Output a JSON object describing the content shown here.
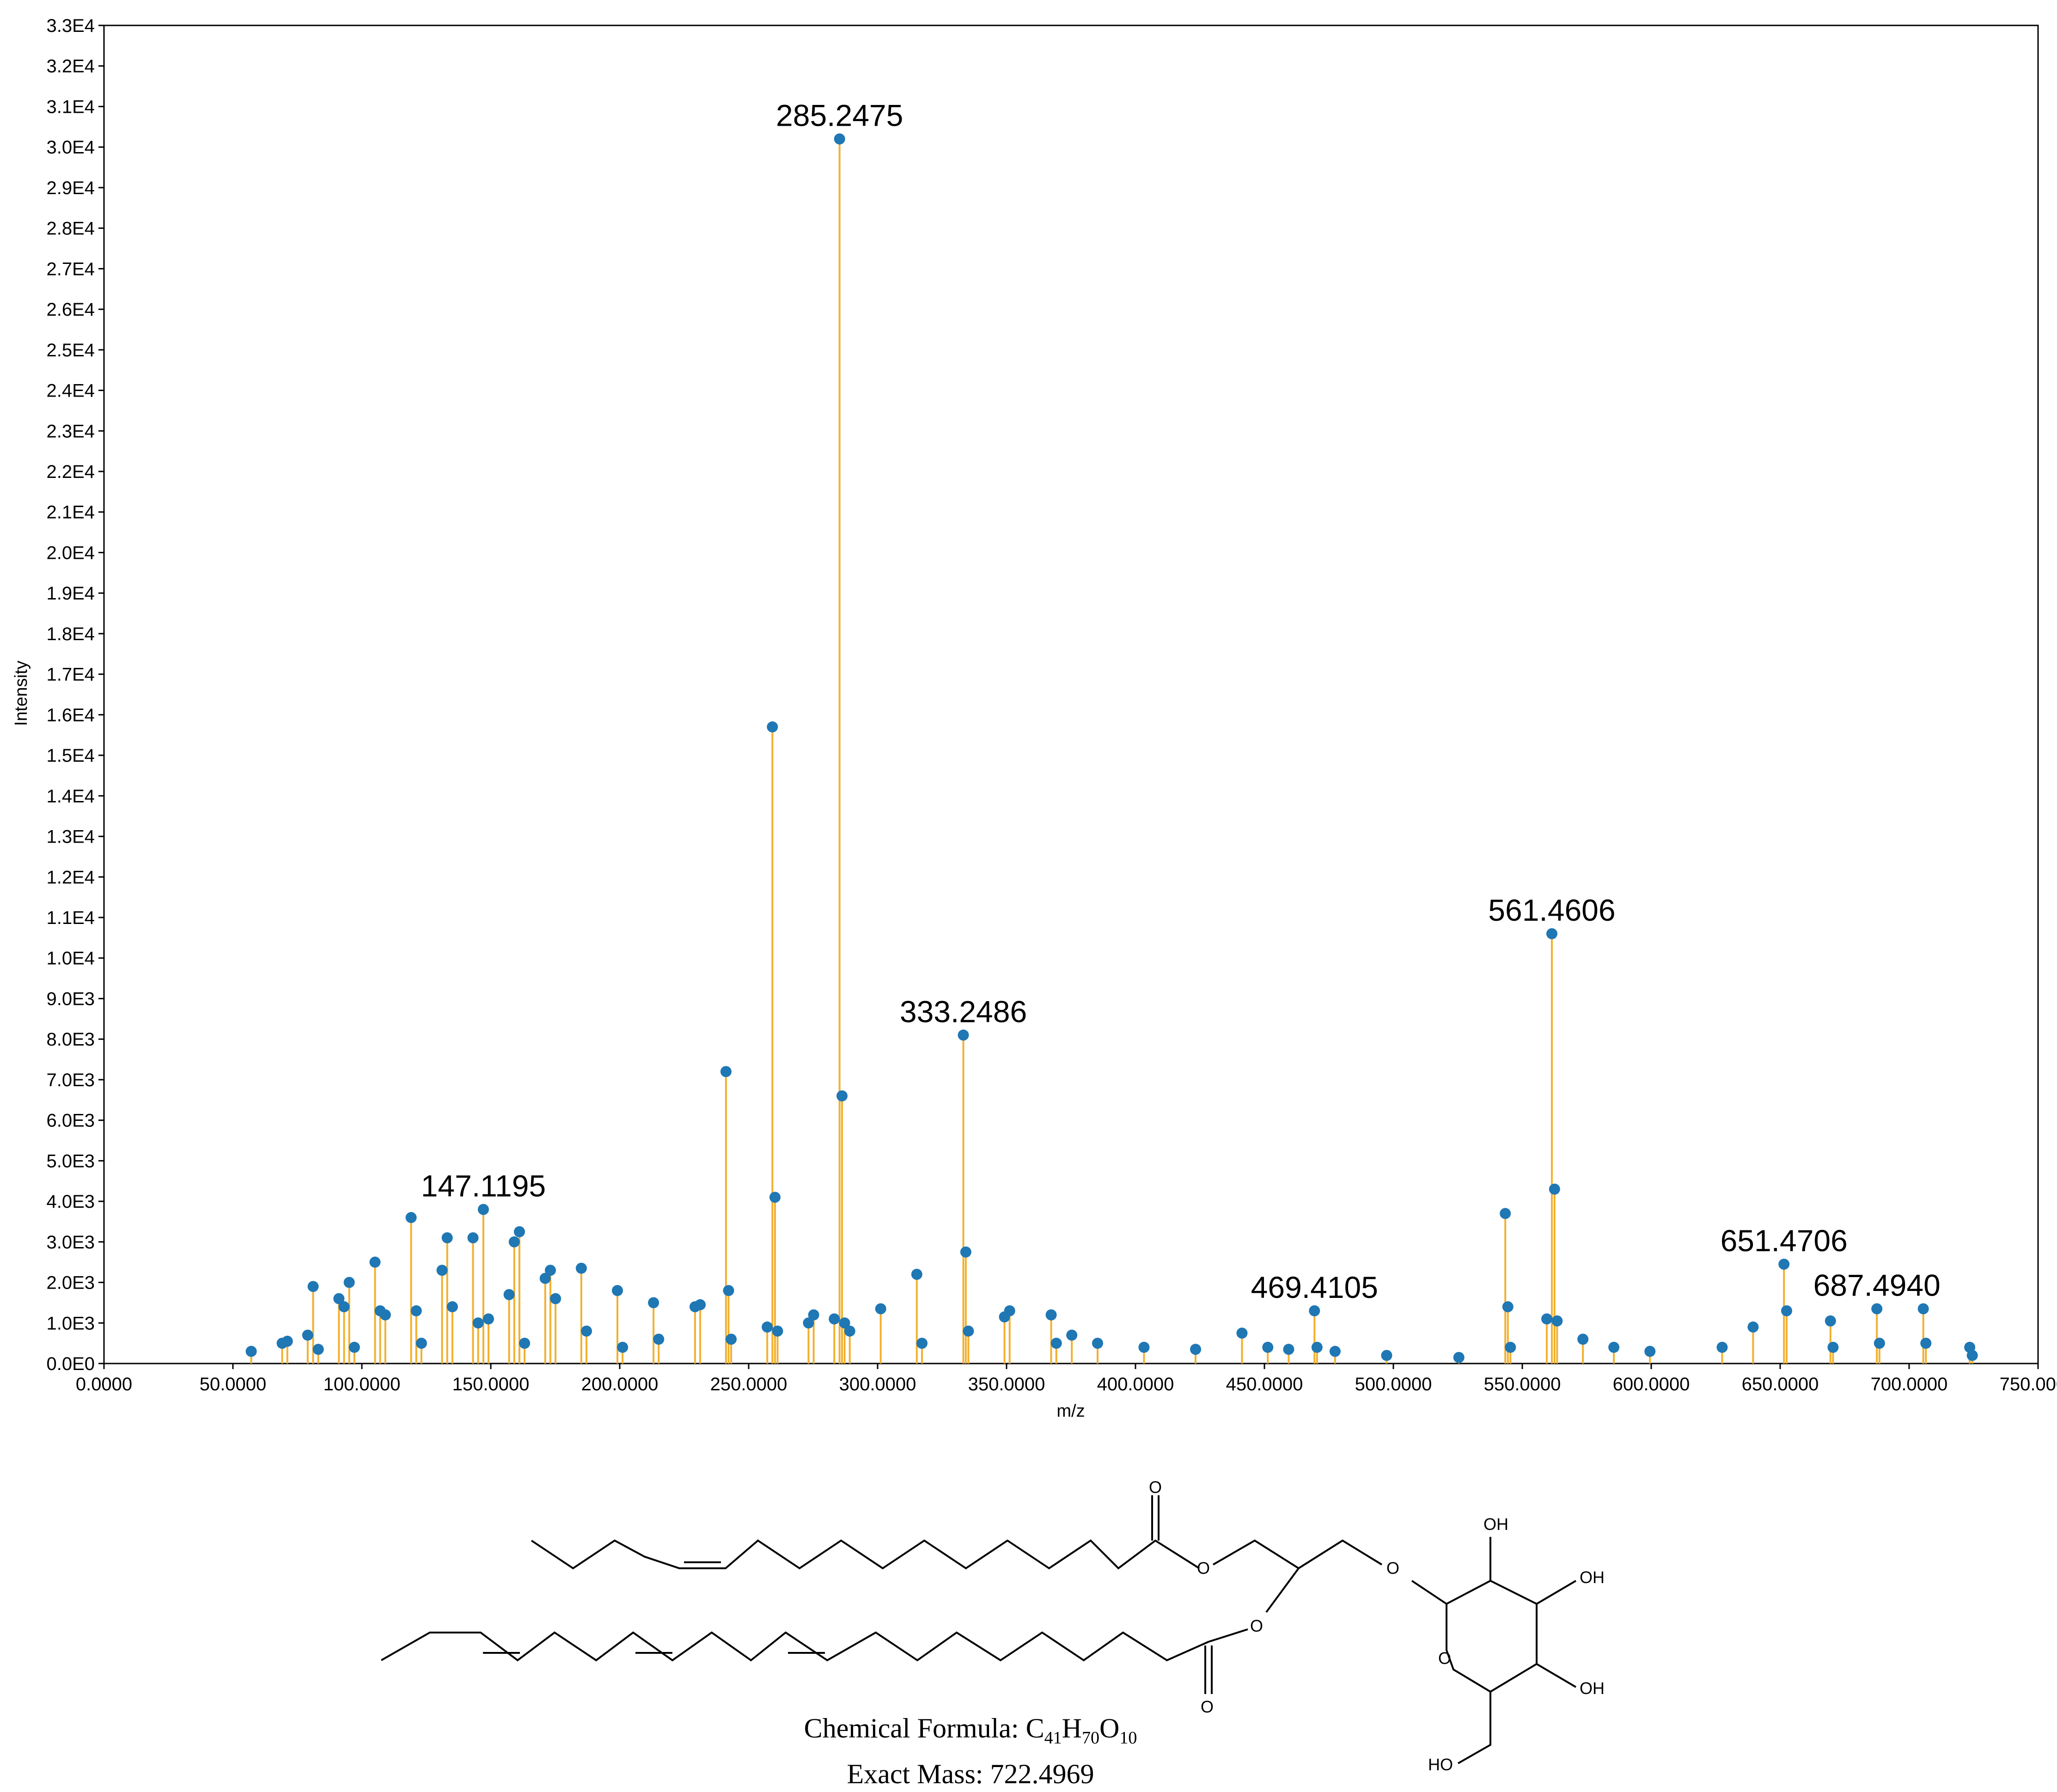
{
  "chart_data": {
    "type": "bar",
    "xlabel": "m/z",
    "ylabel": "Intensity",
    "xlim": [
      0,
      750
    ],
    "ylim": [
      0,
      33000
    ],
    "x_ticks": [
      "0.0000",
      "50.0000",
      "100.0000",
      "150.0000",
      "200.0000",
      "250.0000",
      "300.0000",
      "350.0000",
      "400.0000",
      "450.0000",
      "500.0000",
      "550.0000",
      "600.0000",
      "650.0000",
      "700.0000",
      "750.0000"
    ],
    "y_ticks": [
      "0.0E0",
      "1.0E3",
      "2.0E3",
      "3.0E3",
      "4.0E3",
      "5.0E3",
      "6.0E3",
      "7.0E3",
      "8.0E3",
      "9.0E3",
      "1.0E4",
      "1.1E4",
      "1.2E4",
      "1.3E4",
      "1.4E4",
      "1.5E4",
      "1.6E4",
      "1.7E4",
      "1.8E4",
      "1.9E4",
      "2.0E4",
      "2.1E4",
      "2.2E4",
      "2.3E4",
      "2.4E4",
      "2.5E4",
      "2.6E4",
      "2.7E4",
      "2.8E4",
      "2.9E4",
      "3.0E4",
      "3.1E4",
      "3.2E4",
      "3.3E4"
    ],
    "grid": false,
    "colors": {
      "stem": "#f2b02e",
      "marker": "#1f77b4"
    },
    "peaks": [
      {
        "mz": 57.1,
        "intensity": 300
      },
      {
        "mz": 69.1,
        "intensity": 500
      },
      {
        "mz": 71.1,
        "intensity": 550
      },
      {
        "mz": 79.0,
        "intensity": 700
      },
      {
        "mz": 81.1,
        "intensity": 1900
      },
      {
        "mz": 83.1,
        "intensity": 350
      },
      {
        "mz": 91.1,
        "intensity": 1600
      },
      {
        "mz": 93.1,
        "intensity": 1400
      },
      {
        "mz": 95.1,
        "intensity": 2000
      },
      {
        "mz": 97.1,
        "intensity": 400
      },
      {
        "mz": 105.1,
        "intensity": 2500
      },
      {
        "mz": 107.1,
        "intensity": 1300
      },
      {
        "mz": 109.1,
        "intensity": 1200
      },
      {
        "mz": 119.1,
        "intensity": 3600
      },
      {
        "mz": 121.1,
        "intensity": 1300
      },
      {
        "mz": 123.1,
        "intensity": 500
      },
      {
        "mz": 131.1,
        "intensity": 2300
      },
      {
        "mz": 133.1,
        "intensity": 3100
      },
      {
        "mz": 135.1,
        "intensity": 1400
      },
      {
        "mz": 143.1,
        "intensity": 3100
      },
      {
        "mz": 145.1,
        "intensity": 1000
      },
      {
        "mz": 147.1195,
        "intensity": 3800,
        "label": "147.1195"
      },
      {
        "mz": 149.1,
        "intensity": 1100
      },
      {
        "mz": 157.1,
        "intensity": 1700
      },
      {
        "mz": 159.1,
        "intensity": 3000
      },
      {
        "mz": 161.1,
        "intensity": 3250
      },
      {
        "mz": 163.1,
        "intensity": 500
      },
      {
        "mz": 171.1,
        "intensity": 2100
      },
      {
        "mz": 173.1,
        "intensity": 2300
      },
      {
        "mz": 175.1,
        "intensity": 1600
      },
      {
        "mz": 185.1,
        "intensity": 2350
      },
      {
        "mz": 187.1,
        "intensity": 800
      },
      {
        "mz": 199.1,
        "intensity": 1800
      },
      {
        "mz": 201.1,
        "intensity": 400
      },
      {
        "mz": 213.1,
        "intensity": 1500
      },
      {
        "mz": 215.1,
        "intensity": 600
      },
      {
        "mz": 229.2,
        "intensity": 1400
      },
      {
        "mz": 231.2,
        "intensity": 1450
      },
      {
        "mz": 241.2,
        "intensity": 7200
      },
      {
        "mz": 242.2,
        "intensity": 1800
      },
      {
        "mz": 243.2,
        "intensity": 600
      },
      {
        "mz": 259.2,
        "intensity": 15700
      },
      {
        "mz": 260.2,
        "intensity": 4100
      },
      {
        "mz": 261.2,
        "intensity": 800
      },
      {
        "mz": 257.2,
        "intensity": 900
      },
      {
        "mz": 273.2,
        "intensity": 1000
      },
      {
        "mz": 275.2,
        "intensity": 1200
      },
      {
        "mz": 283.2,
        "intensity": 1100
      },
      {
        "mz": 285.2475,
        "intensity": 30200,
        "label": "285.2475"
      },
      {
        "mz": 286.2,
        "intensity": 6600
      },
      {
        "mz": 287.2,
        "intensity": 1000
      },
      {
        "mz": 289.2,
        "intensity": 800
      },
      {
        "mz": 301.2,
        "intensity": 1350
      },
      {
        "mz": 315.2,
        "intensity": 2200
      },
      {
        "mz": 317.2,
        "intensity": 500
      },
      {
        "mz": 333.2486,
        "intensity": 8100,
        "label": "333.2486"
      },
      {
        "mz": 334.2,
        "intensity": 2750
      },
      {
        "mz": 335.2,
        "intensity": 800
      },
      {
        "mz": 349.2,
        "intensity": 1150
      },
      {
        "mz": 351.2,
        "intensity": 1300
      },
      {
        "mz": 367.3,
        "intensity": 1200
      },
      {
        "mz": 369.3,
        "intensity": 500
      },
      {
        "mz": 375.3,
        "intensity": 700
      },
      {
        "mz": 385.3,
        "intensity": 500
      },
      {
        "mz": 403.3,
        "intensity": 400
      },
      {
        "mz": 423.3,
        "intensity": 350
      },
      {
        "mz": 441.3,
        "intensity": 750
      },
      {
        "mz": 451.3,
        "intensity": 400
      },
      {
        "mz": 459.4,
        "intensity": 350
      },
      {
        "mz": 469.4105,
        "intensity": 1300,
        "label": "469.4105"
      },
      {
        "mz": 470.4,
        "intensity": 400
      },
      {
        "mz": 477.4,
        "intensity": 300
      },
      {
        "mz": 497.4,
        "intensity": 200
      },
      {
        "mz": 525.4,
        "intensity": 150
      },
      {
        "mz": 543.4,
        "intensity": 3700
      },
      {
        "mz": 544.4,
        "intensity": 1400
      },
      {
        "mz": 545.4,
        "intensity": 400
      },
      {
        "mz": 559.5,
        "intensity": 1100
      },
      {
        "mz": 561.4606,
        "intensity": 10600,
        "label": "561.4606"
      },
      {
        "mz": 562.5,
        "intensity": 4300
      },
      {
        "mz": 563.5,
        "intensity": 1050
      },
      {
        "mz": 573.5,
        "intensity": 600
      },
      {
        "mz": 585.5,
        "intensity": 400
      },
      {
        "mz": 599.5,
        "intensity": 300
      },
      {
        "mz": 627.5,
        "intensity": 400
      },
      {
        "mz": 639.5,
        "intensity": 900
      },
      {
        "mz": 651.4706,
        "intensity": 2450,
        "label": "651.4706"
      },
      {
        "mz": 652.5,
        "intensity": 1300
      },
      {
        "mz": 669.5,
        "intensity": 1050
      },
      {
        "mz": 670.5,
        "intensity": 400
      },
      {
        "mz": 687.494,
        "intensity": 1350,
        "label": "687.4940"
      },
      {
        "mz": 688.5,
        "intensity": 500
      },
      {
        "mz": 705.5,
        "intensity": 1350
      },
      {
        "mz": 706.5,
        "intensity": 500
      },
      {
        "mz": 723.5,
        "intensity": 400
      },
      {
        "mz": 724.5,
        "intensity": 200
      }
    ]
  },
  "structure": {
    "atom_labels": {
      "o": "O",
      "oh": "OH",
      "ho": "HO"
    },
    "caption": {
      "formula_prefix": "Chemical Formula: ",
      "c": "C",
      "c_count": "41",
      "h": "H",
      "h_count": "70",
      "o": "O",
      "o_count": "10",
      "mass_line": "Exact Mass: 722.4969"
    }
  }
}
